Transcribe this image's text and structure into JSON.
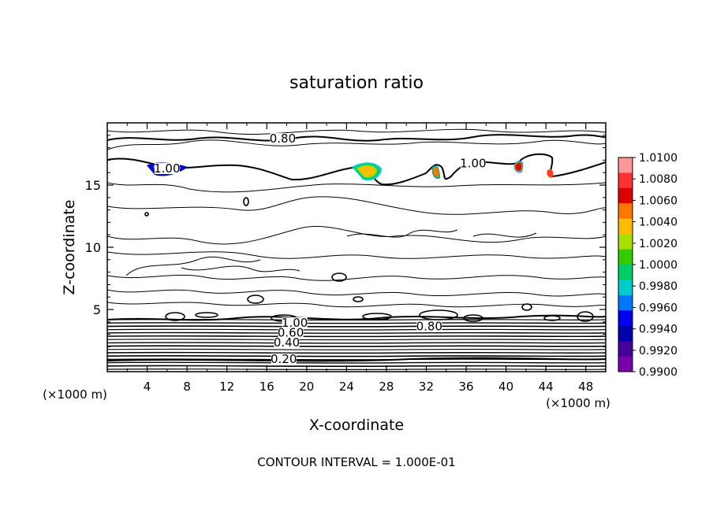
{
  "chart_data": {
    "type": "contour",
    "title": "saturation ratio",
    "xlabel": "X-coordinate",
    "ylabel": "Z-coordinate",
    "x_unit": "(×1000 m)",
    "y_unit": "(×1000 m)",
    "xlim": [
      0,
      50
    ],
    "ylim": [
      0,
      20
    ],
    "x_ticks": [
      4,
      8,
      12,
      16,
      20,
      24,
      28,
      32,
      36,
      40,
      44,
      48
    ],
    "y_ticks": [
      5,
      10,
      15
    ],
    "footer": "CONTOUR INTERVAL = 1.000E-01",
    "contour_labels": [
      {
        "text": "0.80",
        "x": 17.6,
        "z": 18.6
      },
      {
        "text": "1.00",
        "x": 6.0,
        "z": 16.2
      },
      {
        "text": "1.00",
        "x": 36.7,
        "z": 16.6
      },
      {
        "text": "1.00",
        "x": 18.8,
        "z": 3.8
      },
      {
        "text": "0.80",
        "x": 32.3,
        "z": 3.5
      },
      {
        "text": "0.60",
        "x": 18.4,
        "z": 3.0
      },
      {
        "text": "0.40",
        "x": 18.0,
        "z": 2.2
      },
      {
        "text": "0.20",
        "x": 17.7,
        "z": 0.9
      }
    ],
    "colorbar": {
      "labels": [
        "1.0100",
        "1.0080",
        "1.0060",
        "1.0040",
        "1.0020",
        "1.0000",
        "0.9980",
        "0.9960",
        "0.9940",
        "0.9920",
        "0.9900"
      ],
      "colors": [
        "#ff9999",
        "#ff3333",
        "#dd0000",
        "#ff7700",
        "#ffbb00",
        "#aadd00",
        "#33cc00",
        "#00cc66",
        "#00cccc",
        "#0077ff",
        "#0000ee",
        "#0000aa",
        "#440099",
        "#7700aa"
      ]
    }
  }
}
